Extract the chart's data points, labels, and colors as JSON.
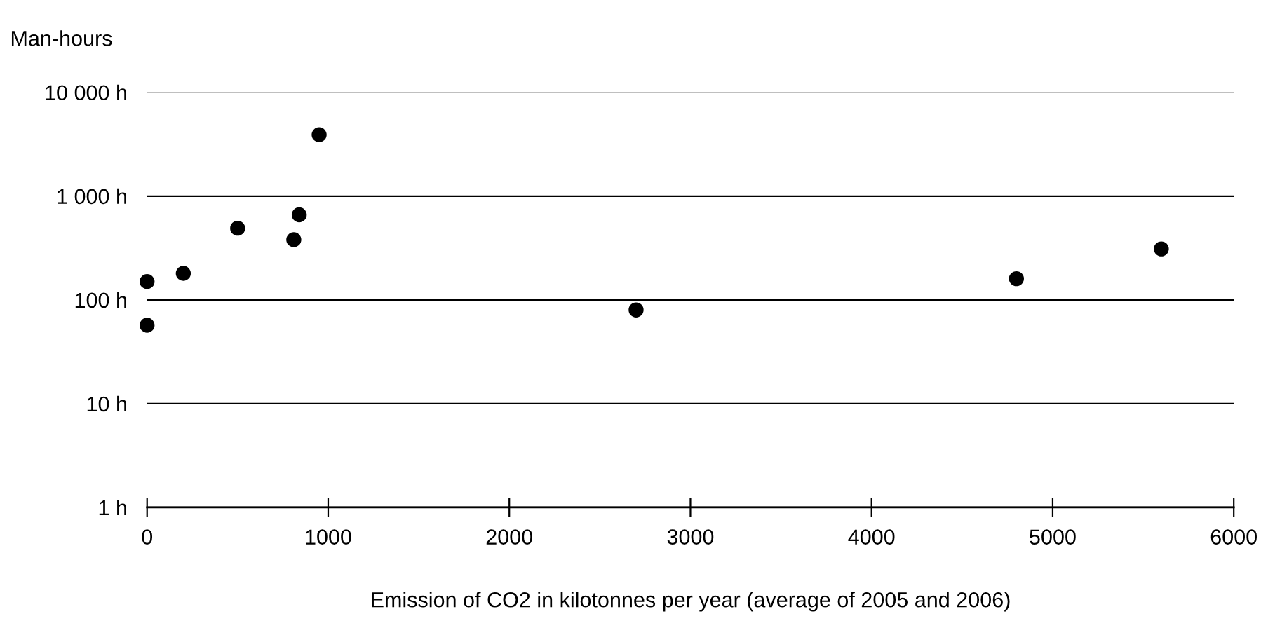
{
  "chart_data": {
    "type": "scatter",
    "ylabel": "Man-hours",
    "xlabel": "Emission of CO2 in kilotonnes per year (average of 2005 and 2006)",
    "x": [
      0,
      0,
      200,
      500,
      810,
      840,
      950,
      2700,
      4800,
      5600
    ],
    "values": [
      57,
      150,
      180,
      490,
      380,
      660,
      3900,
      80,
      160,
      310
    ],
    "color": "#000000",
    "marker": "circle",
    "log": "y",
    "grid": "y",
    "xlim": [
      0,
      6000
    ],
    "xticks": [
      0,
      1000,
      2000,
      3000,
      4000,
      5000,
      6000
    ],
    "ylim": [
      1,
      10000
    ],
    "yticks": [
      {
        "value": 1,
        "label": "1 h"
      },
      {
        "value": 10,
        "label": "10 h"
      },
      {
        "value": 100,
        "label": "100 h"
      },
      {
        "value": 1000,
        "label": "1 000 h"
      },
      {
        "value": 10000,
        "label": "10 000 h"
      }
    ]
  }
}
